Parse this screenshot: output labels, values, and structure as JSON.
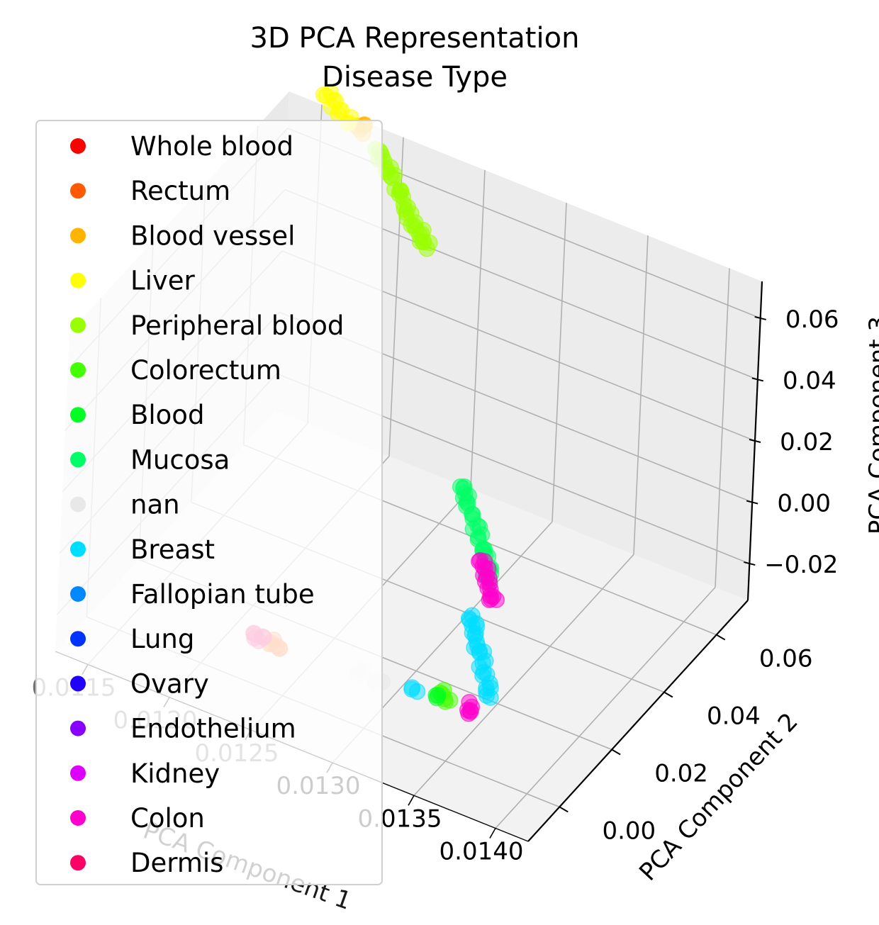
{
  "chart_data": {
    "type": "scatter",
    "projection": "3d",
    "title_lines": [
      "3D PCA Representation",
      "Disease Type"
    ],
    "xlabel": "PCA Component 1",
    "ylabel": "PCA Component 2",
    "zlabel": "PCA Component 3",
    "x_ticks": [
      "0.0115",
      "0.0120",
      "0.0125",
      "0.0130",
      "0.0135",
      "0.0140"
    ],
    "y_ticks": [
      "0.00",
      "0.02",
      "0.04",
      "0.06"
    ],
    "z_ticks": [
      "−0.02",
      "0.00",
      "0.02",
      "0.04",
      "0.06"
    ],
    "xlim": [
      0.0113,
      0.0142
    ],
    "ylim": [
      -0.012,
      0.072
    ],
    "zlim": [
      -0.032,
      0.072
    ],
    "grid": true,
    "legend_position": "upper-left",
    "marker_alpha": 0.5,
    "series": [
      {
        "name": "Whole blood",
        "color": "#ff0000",
        "points": []
      },
      {
        "name": "Rectum",
        "color": "#ff5a00",
        "points": [
          [
            0.01245,
            0.0015,
            -0.019
          ],
          [
            0.0124,
            0.0019,
            -0.018
          ]
        ]
      },
      {
        "name": "Blood vessel",
        "color": "#ffb400",
        "points": [
          [
            0.0118,
            0.069,
            0.0735
          ],
          [
            0.01178,
            0.0688,
            0.0728
          ]
        ]
      },
      {
        "name": "Liver",
        "color": "#ffff00",
        "points": [
          [
            0.01155,
            0.0705,
            0.0775
          ],
          [
            0.0116,
            0.0702,
            0.0765
          ],
          [
            0.01165,
            0.0698,
            0.075
          ],
          [
            0.01172,
            0.0694,
            0.0742
          ]
        ]
      },
      {
        "name": "Peripheral blood",
        "color": "#99ff00",
        "points": [
          [
            0.0119,
            0.069,
            0.068
          ],
          [
            0.01193,
            0.0688,
            0.066
          ],
          [
            0.01196,
            0.0686,
            0.064
          ],
          [
            0.012,
            0.0684,
            0.062
          ],
          [
            0.01203,
            0.0682,
            0.06
          ],
          [
            0.01206,
            0.068,
            0.058
          ],
          [
            0.0121,
            0.0677,
            0.056
          ],
          [
            0.01213,
            0.0675,
            0.054
          ],
          [
            0.01216,
            0.0673,
            0.052
          ],
          [
            0.0122,
            0.067,
            0.05
          ],
          [
            0.01222,
            0.0668,
            0.0485
          ],
          [
            0.01225,
            0.0666,
            0.047
          ]
        ]
      },
      {
        "name": "Colorectum",
        "color": "#44ff00",
        "points": [
          [
            0.01335,
            0.0082,
            -0.021
          ],
          [
            0.01338,
            0.0078,
            -0.023
          ]
        ]
      },
      {
        "name": "Blood",
        "color": "#00ff22",
        "points": [
          [
            0.01332,
            0.0075,
            -0.0225
          ]
        ]
      },
      {
        "name": "Mucosa",
        "color": "#00ff66",
        "points": [
          [
            0.0131,
            0.0295,
            0.022
          ],
          [
            0.01312,
            0.0292,
            0.0195
          ],
          [
            0.01315,
            0.0288,
            0.017
          ],
          [
            0.01317,
            0.0285,
            0.0145
          ],
          [
            0.0132,
            0.0282,
            0.012
          ],
          [
            0.01322,
            0.0279,
            0.0095
          ],
          [
            0.01325,
            0.0276,
            0.007
          ],
          [
            0.01327,
            0.0272,
            0.0045
          ],
          [
            0.0133,
            0.0269,
            0.002
          ],
          [
            0.01332,
            0.0265,
            -0.0005
          ]
        ]
      },
      {
        "name": "nan",
        "color": "#e8e8e8",
        "points": [
          [
            0.0129,
            0.0045,
            -0.0205
          ],
          [
            0.013,
            0.005,
            -0.0215
          ]
        ]
      },
      {
        "name": "Breast",
        "color": "#00ddff",
        "points": [
          [
            0.0134,
            0.0145,
            -0.0005
          ],
          [
            0.01342,
            0.0142,
            -0.003
          ],
          [
            0.01344,
            0.014,
            -0.0055
          ],
          [
            0.01346,
            0.0137,
            -0.008
          ],
          [
            0.01348,
            0.0135,
            -0.0105
          ],
          [
            0.0135,
            0.0132,
            -0.013
          ],
          [
            0.01352,
            0.013,
            -0.0155
          ],
          [
            0.01354,
            0.0128,
            -0.018
          ],
          [
            0.01356,
            0.0126,
            -0.0205
          ],
          [
            0.0132,
            0.006,
            -0.021
          ]
        ]
      },
      {
        "name": "Fallopian tube",
        "color": "#0088ff",
        "points": []
      },
      {
        "name": "Lung",
        "color": "#0033ff",
        "points": []
      },
      {
        "name": "Ovary",
        "color": "#2200ff",
        "points": []
      },
      {
        "name": "Endothelium",
        "color": "#8800ff",
        "points": []
      },
      {
        "name": "Kidney",
        "color": "#dd00ff",
        "points": []
      },
      {
        "name": "Colon",
        "color": "#ff00cc",
        "points": [
          [
            0.0133,
            0.0245,
            0.0065
          ],
          [
            0.01332,
            0.0242,
            0.0045
          ],
          [
            0.01334,
            0.0239,
            0.0025
          ],
          [
            0.01336,
            0.0236,
            0.0005
          ],
          [
            0.01338,
            0.0233,
            -0.0015
          ],
          [
            0.0134,
            0.023,
            -0.0035
          ],
          [
            0.0135,
            0.0085,
            -0.022
          ],
          [
            0.01352,
            0.008,
            -0.0235
          ]
        ]
      },
      {
        "name": "Dermis",
        "color": "#ff0066",
        "points": [
          [
            0.0123,
            0.0008,
            -0.0178
          ],
          [
            0.01235,
            0.0012,
            -0.0185
          ]
        ]
      }
    ]
  }
}
